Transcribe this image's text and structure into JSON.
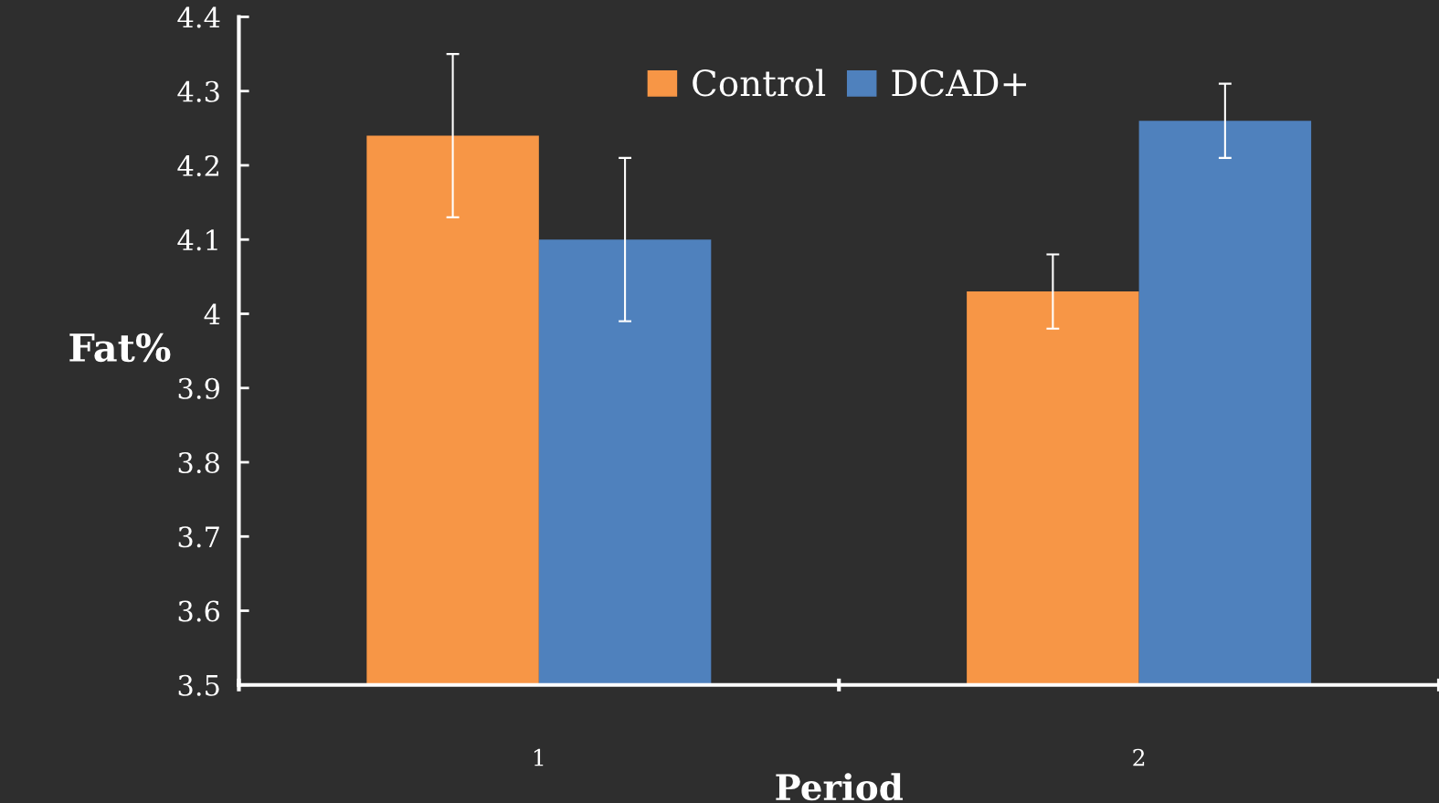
{
  "chart_data": {
    "type": "bar",
    "xlabel": "Period",
    "ylabel": "Fat%",
    "categories": [
      "1",
      "2"
    ],
    "series": [
      {
        "name": "Control",
        "color": "#f79646",
        "values": [
          4.24,
          4.03
        ],
        "errors": [
          0.11,
          0.05
        ]
      },
      {
        "name": "DCAD+",
        "color": "#4f81bd",
        "values": [
          4.1,
          4.26
        ],
        "errors": [
          0.11,
          0.05
        ]
      }
    ],
    "ylim": [
      3.5,
      4.4
    ],
    "yticks": [
      3.5,
      3.6,
      3.7,
      3.8,
      3.9,
      4,
      4.1,
      4.2,
      4.3,
      4.4
    ],
    "grid": false,
    "legend": "top"
  }
}
